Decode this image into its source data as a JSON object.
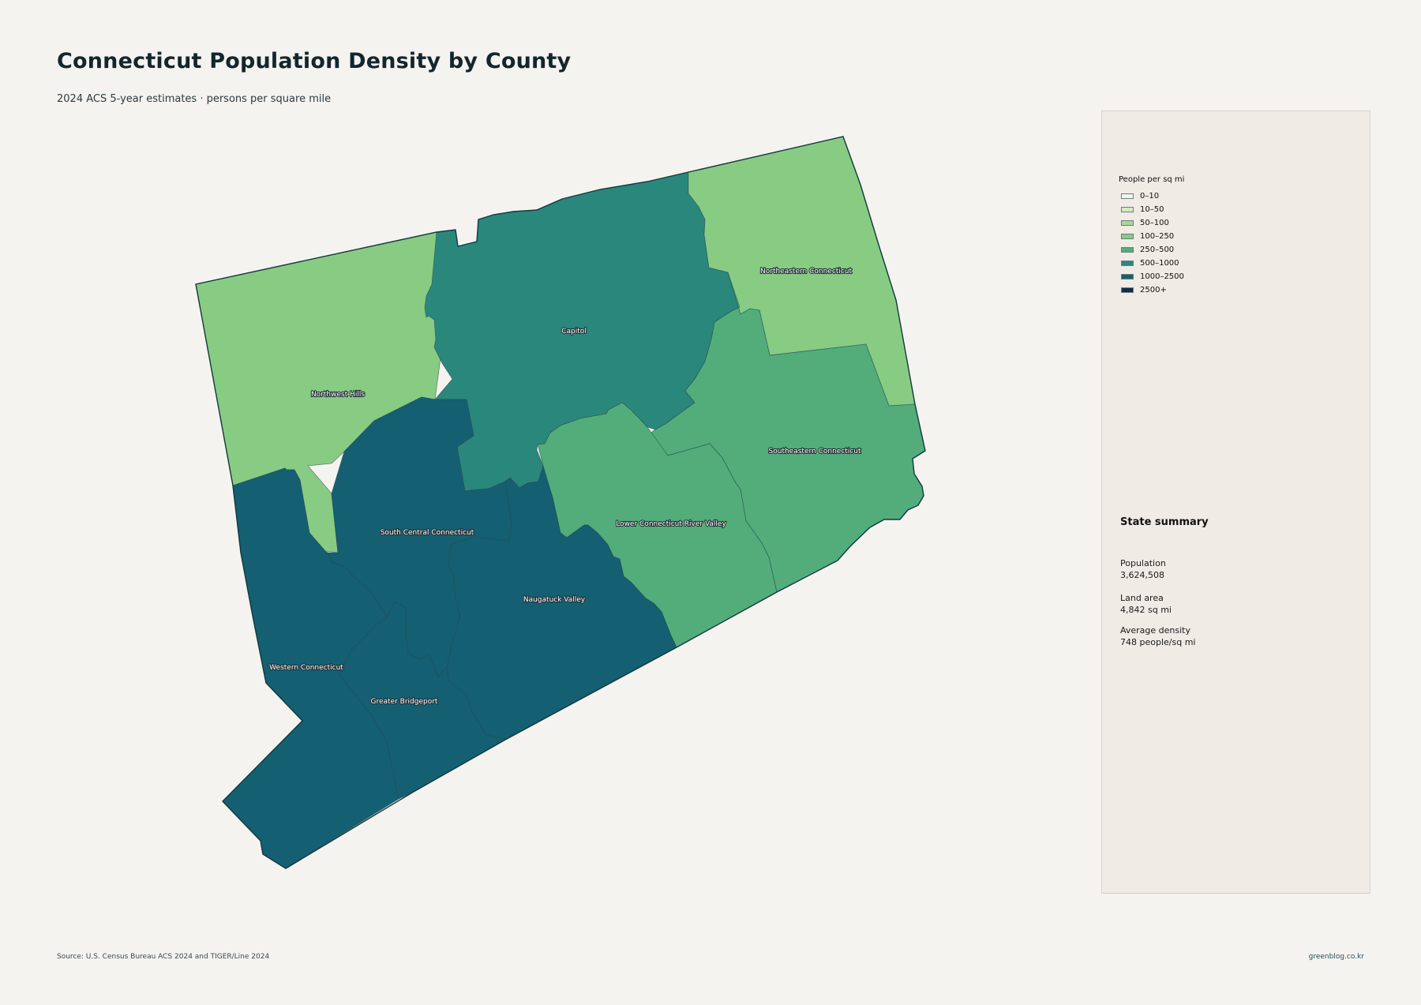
{
  "title": "Connecticut Population Density by County",
  "subtitle": "2024 ACS 5-year estimates · persons per square mile",
  "legend": {
    "title": "People per sq mi",
    "items": [
      {
        "label": "0–10",
        "color": "#f4f4ef"
      },
      {
        "label": "10–50",
        "color": "#d4eac2"
      },
      {
        "label": "50–100",
        "color": "#a9d993"
      },
      {
        "label": "100–250",
        "color": "#88cb83"
      },
      {
        "label": "250–500",
        "color": "#52ad7a"
      },
      {
        "label": "500–1000",
        "color": "#2a877b"
      },
      {
        "label": "1000–2500",
        "color": "#155f72"
      },
      {
        "label": "2500+",
        "color": "#112c4a"
      }
    ]
  },
  "regions": [
    {
      "name": "Northwest Hills",
      "density_class": "100–250",
      "color": "#88cb83"
    },
    {
      "name": "Capitol",
      "density_class": "500–1000",
      "color": "#2a877b"
    },
    {
      "name": "Northeastern Connecticut",
      "density_class": "100–250",
      "color": "#88cb83"
    },
    {
      "name": "Southeastern Connecticut",
      "density_class": "250–500",
      "color": "#52ad7a"
    },
    {
      "name": "Lower Connecticut River Valley",
      "density_class": "250–500",
      "color": "#52ad7a"
    },
    {
      "name": "Naugatuck Valley",
      "density_class": "1000–2500",
      "color": "#155f72"
    },
    {
      "name": "South Central Connecticut",
      "density_class": "1000–2500",
      "color": "#155f72"
    },
    {
      "name": "Western Connecticut",
      "density_class": "1000–2500",
      "color": "#155f72"
    },
    {
      "name": "Greater Bridgeport",
      "density_class": "1000–2500",
      "color": "#155f72"
    }
  ],
  "summary": {
    "title": "State summary",
    "population_label": "Population",
    "population_value": "3,624,508",
    "area_label": "Land area",
    "area_value": "4,842 sq mi",
    "density_label": "Average density",
    "density_value": "748 people/sq mi"
  },
  "footer": {
    "source": "Source: U.S. Census Bureau ACS 2024 and TIGER/Line 2024",
    "site": "greenblog.co.kr"
  },
  "colors": {
    "background": "#f5f3ef",
    "panel": "#f0ebe5",
    "outline": "#0f3a3c"
  }
}
